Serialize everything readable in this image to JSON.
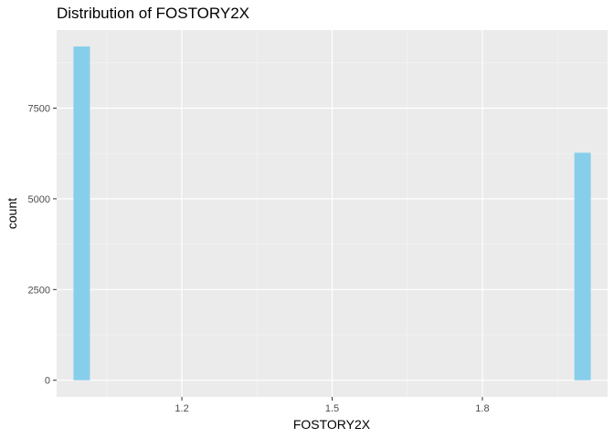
{
  "chart_data": {
    "type": "bar",
    "title": "Distribution of FOSTORY2X",
    "xlabel": "FOSTORY2X",
    "ylabel": "count",
    "x_ticks": [
      1.2,
      1.5,
      1.8
    ],
    "x_tick_labels": [
      "1.2",
      "1.5",
      "1.8"
    ],
    "y_ticks": [
      0,
      2500,
      5000,
      7500
    ],
    "y_tick_labels": [
      "0",
      "2500",
      "5000",
      "7500"
    ],
    "xlim": [
      0.95,
      2.05
    ],
    "ylim": [
      -460,
      9650
    ],
    "bins": [
      {
        "x": 1.0,
        "count": 9200
      },
      {
        "x": 2.0,
        "count": 6270
      }
    ],
    "bar_color": "#87ceeb",
    "panel_background": "#ebebeb",
    "grid": true,
    "legend": "none"
  }
}
